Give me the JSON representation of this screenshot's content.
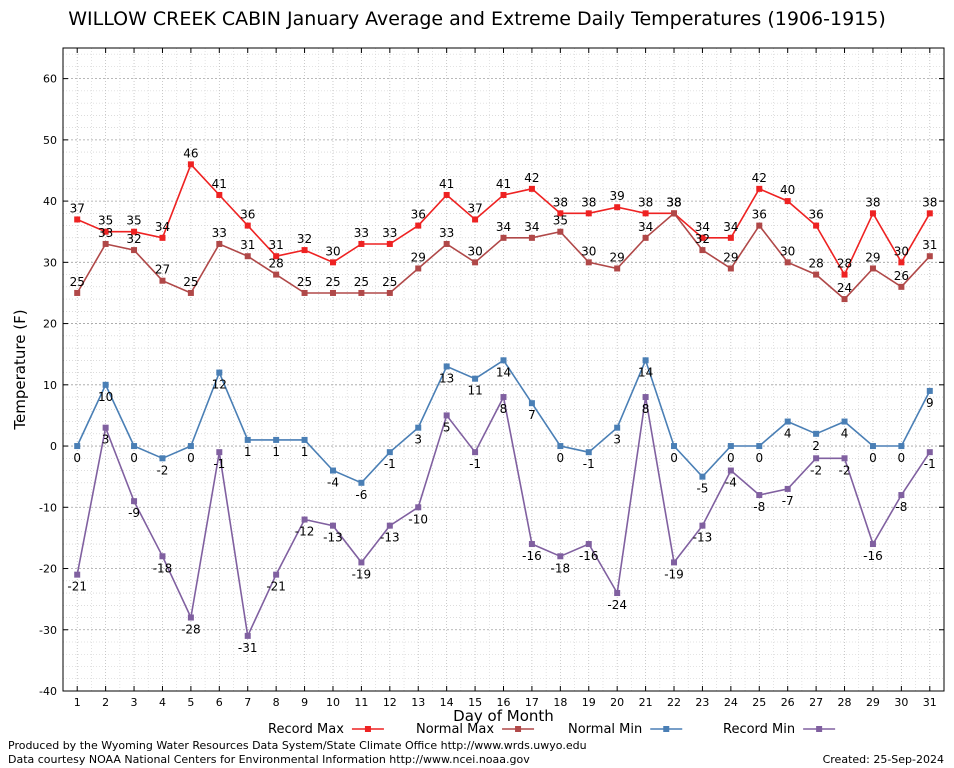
{
  "chart_data": {
    "type": "line",
    "title": "WILLOW CREEK CABIN January Average and Extreme Daily Temperatures (1906-1915)",
    "xlabel": "Day of Month",
    "ylabel": "Temperature (F)",
    "x": [
      1,
      2,
      3,
      4,
      5,
      6,
      7,
      8,
      9,
      10,
      11,
      12,
      13,
      14,
      15,
      16,
      17,
      18,
      19,
      20,
      21,
      22,
      23,
      24,
      25,
      26,
      27,
      28,
      29,
      30,
      31
    ],
    "ylim": [
      -40,
      65
    ],
    "yticks": [
      -40,
      -30,
      -20,
      -10,
      0,
      10,
      20,
      30,
      40,
      50,
      60
    ],
    "grid": true,
    "legend": "bottom",
    "series": [
      {
        "name": "Record Max",
        "color": "#ee2222",
        "label_pos": "above",
        "values": [
          37,
          35,
          35,
          34,
          46,
          41,
          36,
          31,
          32,
          30,
          33,
          33,
          36,
          41,
          37,
          41,
          42,
          38,
          38,
          39,
          38,
          38,
          34,
          34,
          42,
          40,
          36,
          28,
          38,
          30,
          38
        ]
      },
      {
        "name": "Normal Max",
        "color": "#b04848",
        "label_pos": "above",
        "values": [
          25,
          33,
          32,
          27,
          25,
          33,
          31,
          28,
          25,
          25,
          25,
          25,
          29,
          33,
          30,
          34,
          34,
          35,
          30,
          29,
          34,
          38,
          32,
          29,
          36,
          30,
          28,
          24,
          29,
          26,
          31
        ]
      },
      {
        "name": "Normal Min",
        "color": "#4a7fb5",
        "label_pos": "below",
        "values": [
          0,
          10,
          0,
          -2,
          0,
          12,
          1,
          1,
          1,
          -4,
          -6,
          -1,
          3,
          13,
          11,
          14,
          7,
          0,
          -1,
          3,
          14,
          0,
          -5,
          0,
          0,
          4,
          2,
          4,
          0,
          0,
          9
        ]
      },
      {
        "name": "Record Min",
        "color": "#8060a0",
        "label_pos": "below",
        "values": [
          -21,
          3,
          -9,
          -18,
          -28,
          -1,
          -31,
          -21,
          -12,
          -13,
          -19,
          -13,
          -10,
          5,
          -1,
          8,
          -16,
          -18,
          -16,
          -24,
          8,
          -19,
          -13,
          -4,
          -8,
          -7,
          -2,
          -2,
          -16,
          -8,
          -1
        ]
      }
    ]
  },
  "footer": {
    "line1": "Produced by the Wyoming Water Resources Data System/State Climate Office http://www.wrds.uwyo.edu",
    "line2": "Data courtesy NOAA National Centers for Environmental Information http://www.ncei.noaa.gov",
    "created": "Created:  25-Sep-2024"
  }
}
